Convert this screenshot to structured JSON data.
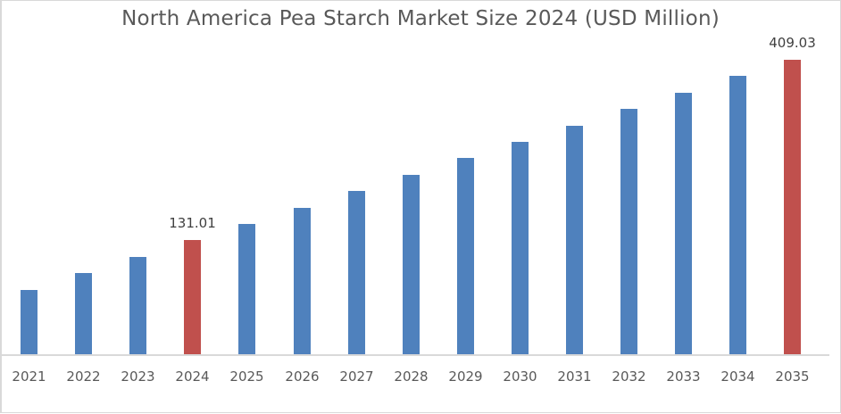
{
  "chart_data": {
    "type": "bar",
    "title": "North America Pea Starch Market Size 2024 (USD Million)",
    "xlabel": "",
    "ylabel": "",
    "categories": [
      "2021",
      "2022",
      "2023",
      "2024",
      "2025",
      "2026",
      "2027",
      "2028",
      "2029",
      "2030",
      "2031",
      "2032",
      "2033",
      "2034",
      "2035"
    ],
    "values": [
      54.0,
      80.2,
      104.9,
      131.01,
      155.8,
      180.6,
      207.2,
      232.0,
      258.1,
      282.9,
      307.7,
      333.8,
      358.6,
      384.8,
      409.03
    ],
    "highlight": [
      "2024",
      "2035"
    ],
    "data_labels": {
      "2024": "131.01",
      "2035": "409.03"
    },
    "colors": {
      "default": "#4f81bd",
      "highlight": "#c0504d"
    },
    "grid": false,
    "legend": "none"
  }
}
